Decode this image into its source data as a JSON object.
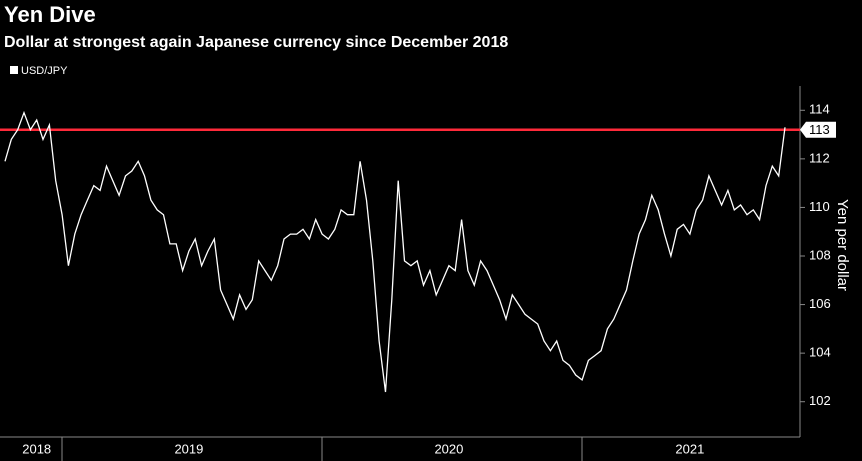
{
  "chart_data": {
    "type": "line",
    "title": "Yen Dive",
    "subtitle": "Dollar at strongest again Japanese currency since December 2018",
    "y_label": "Yen per dollar",
    "categories": [
      null,
      null,
      null,
      null,
      null,
      "2018",
      null,
      null,
      null,
      null,
      null,
      null,
      null,
      null,
      null,
      null,
      null,
      null,
      null,
      null,
      null,
      null,
      null,
      null,
      null,
      null,
      null,
      null,
      null,
      "2019",
      null,
      null,
      null,
      null,
      null,
      null,
      null,
      null,
      null,
      null,
      null,
      null,
      null,
      null,
      null,
      null,
      null,
      null,
      null,
      null,
      null,
      null,
      null,
      null,
      null,
      null,
      null,
      null,
      null,
      null,
      null,
      null,
      null,
      null,
      null,
      null,
      null,
      null,
      null,
      null,
      "2020",
      null,
      null,
      null,
      null,
      null,
      null,
      null,
      null,
      null,
      null,
      null,
      null,
      null,
      null,
      null,
      null,
      null,
      null,
      null,
      null,
      null,
      null,
      null,
      null,
      null,
      null,
      null,
      null,
      null,
      null,
      null,
      null,
      null,
      null,
      null,
      null,
      null,
      "2021",
      null,
      null,
      null,
      null,
      null,
      null,
      null,
      null,
      null,
      null,
      null,
      null,
      null,
      null,
      null
    ],
    "series": [
      {
        "name": "USD/JPY",
        "color": "#ffffff",
        "values": [
          111.9,
          112.8,
          113.2,
          113.9,
          113.2,
          113.6,
          112.8,
          113.4,
          111.1,
          109.7,
          107.6,
          108.9,
          109.7,
          110.3,
          110.9,
          110.7,
          111.7,
          111.1,
          110.5,
          111.3,
          111.5,
          111.9,
          111.3,
          110.3,
          109.9,
          109.7,
          108.5,
          108.5,
          107.4,
          108.2,
          108.7,
          107.6,
          108.2,
          108.7,
          106.6,
          106.0,
          105.4,
          106.4,
          105.8,
          106.2,
          107.8,
          107.4,
          107.0,
          107.6,
          108.7,
          108.9,
          108.9,
          109.1,
          108.7,
          109.5,
          108.9,
          108.7,
          109.1,
          109.9,
          109.7,
          109.7,
          111.9,
          110.3,
          107.8,
          104.5,
          102.4,
          106.2,
          111.1,
          107.8,
          107.6,
          107.8,
          106.8,
          107.4,
          106.4,
          107.0,
          107.6,
          107.4,
          109.5,
          107.4,
          106.8,
          107.8,
          107.4,
          106.8,
          106.2,
          105.4,
          106.4,
          106.0,
          105.6,
          105.4,
          105.2,
          104.5,
          104.1,
          104.5,
          103.7,
          103.5,
          103.1,
          102.9,
          103.7,
          103.9,
          104.1,
          105.0,
          105.4,
          106.0,
          106.6,
          107.8,
          108.9,
          109.5,
          110.5,
          109.9,
          108.9,
          108.0,
          109.1,
          109.3,
          108.9,
          109.9,
          110.3,
          111.3,
          110.7,
          110.1,
          110.7,
          109.9,
          110.1,
          109.7,
          109.9,
          109.5,
          110.9,
          111.7,
          111.3,
          113.3
        ]
      }
    ],
    "reference_line": {
      "value": 113.2,
      "label": "113",
      "color": "#ff2a3a"
    },
    "ylim": [
      101,
      115
    ],
    "yticks": [
      102,
      104,
      106,
      108,
      110,
      112,
      114
    ]
  }
}
